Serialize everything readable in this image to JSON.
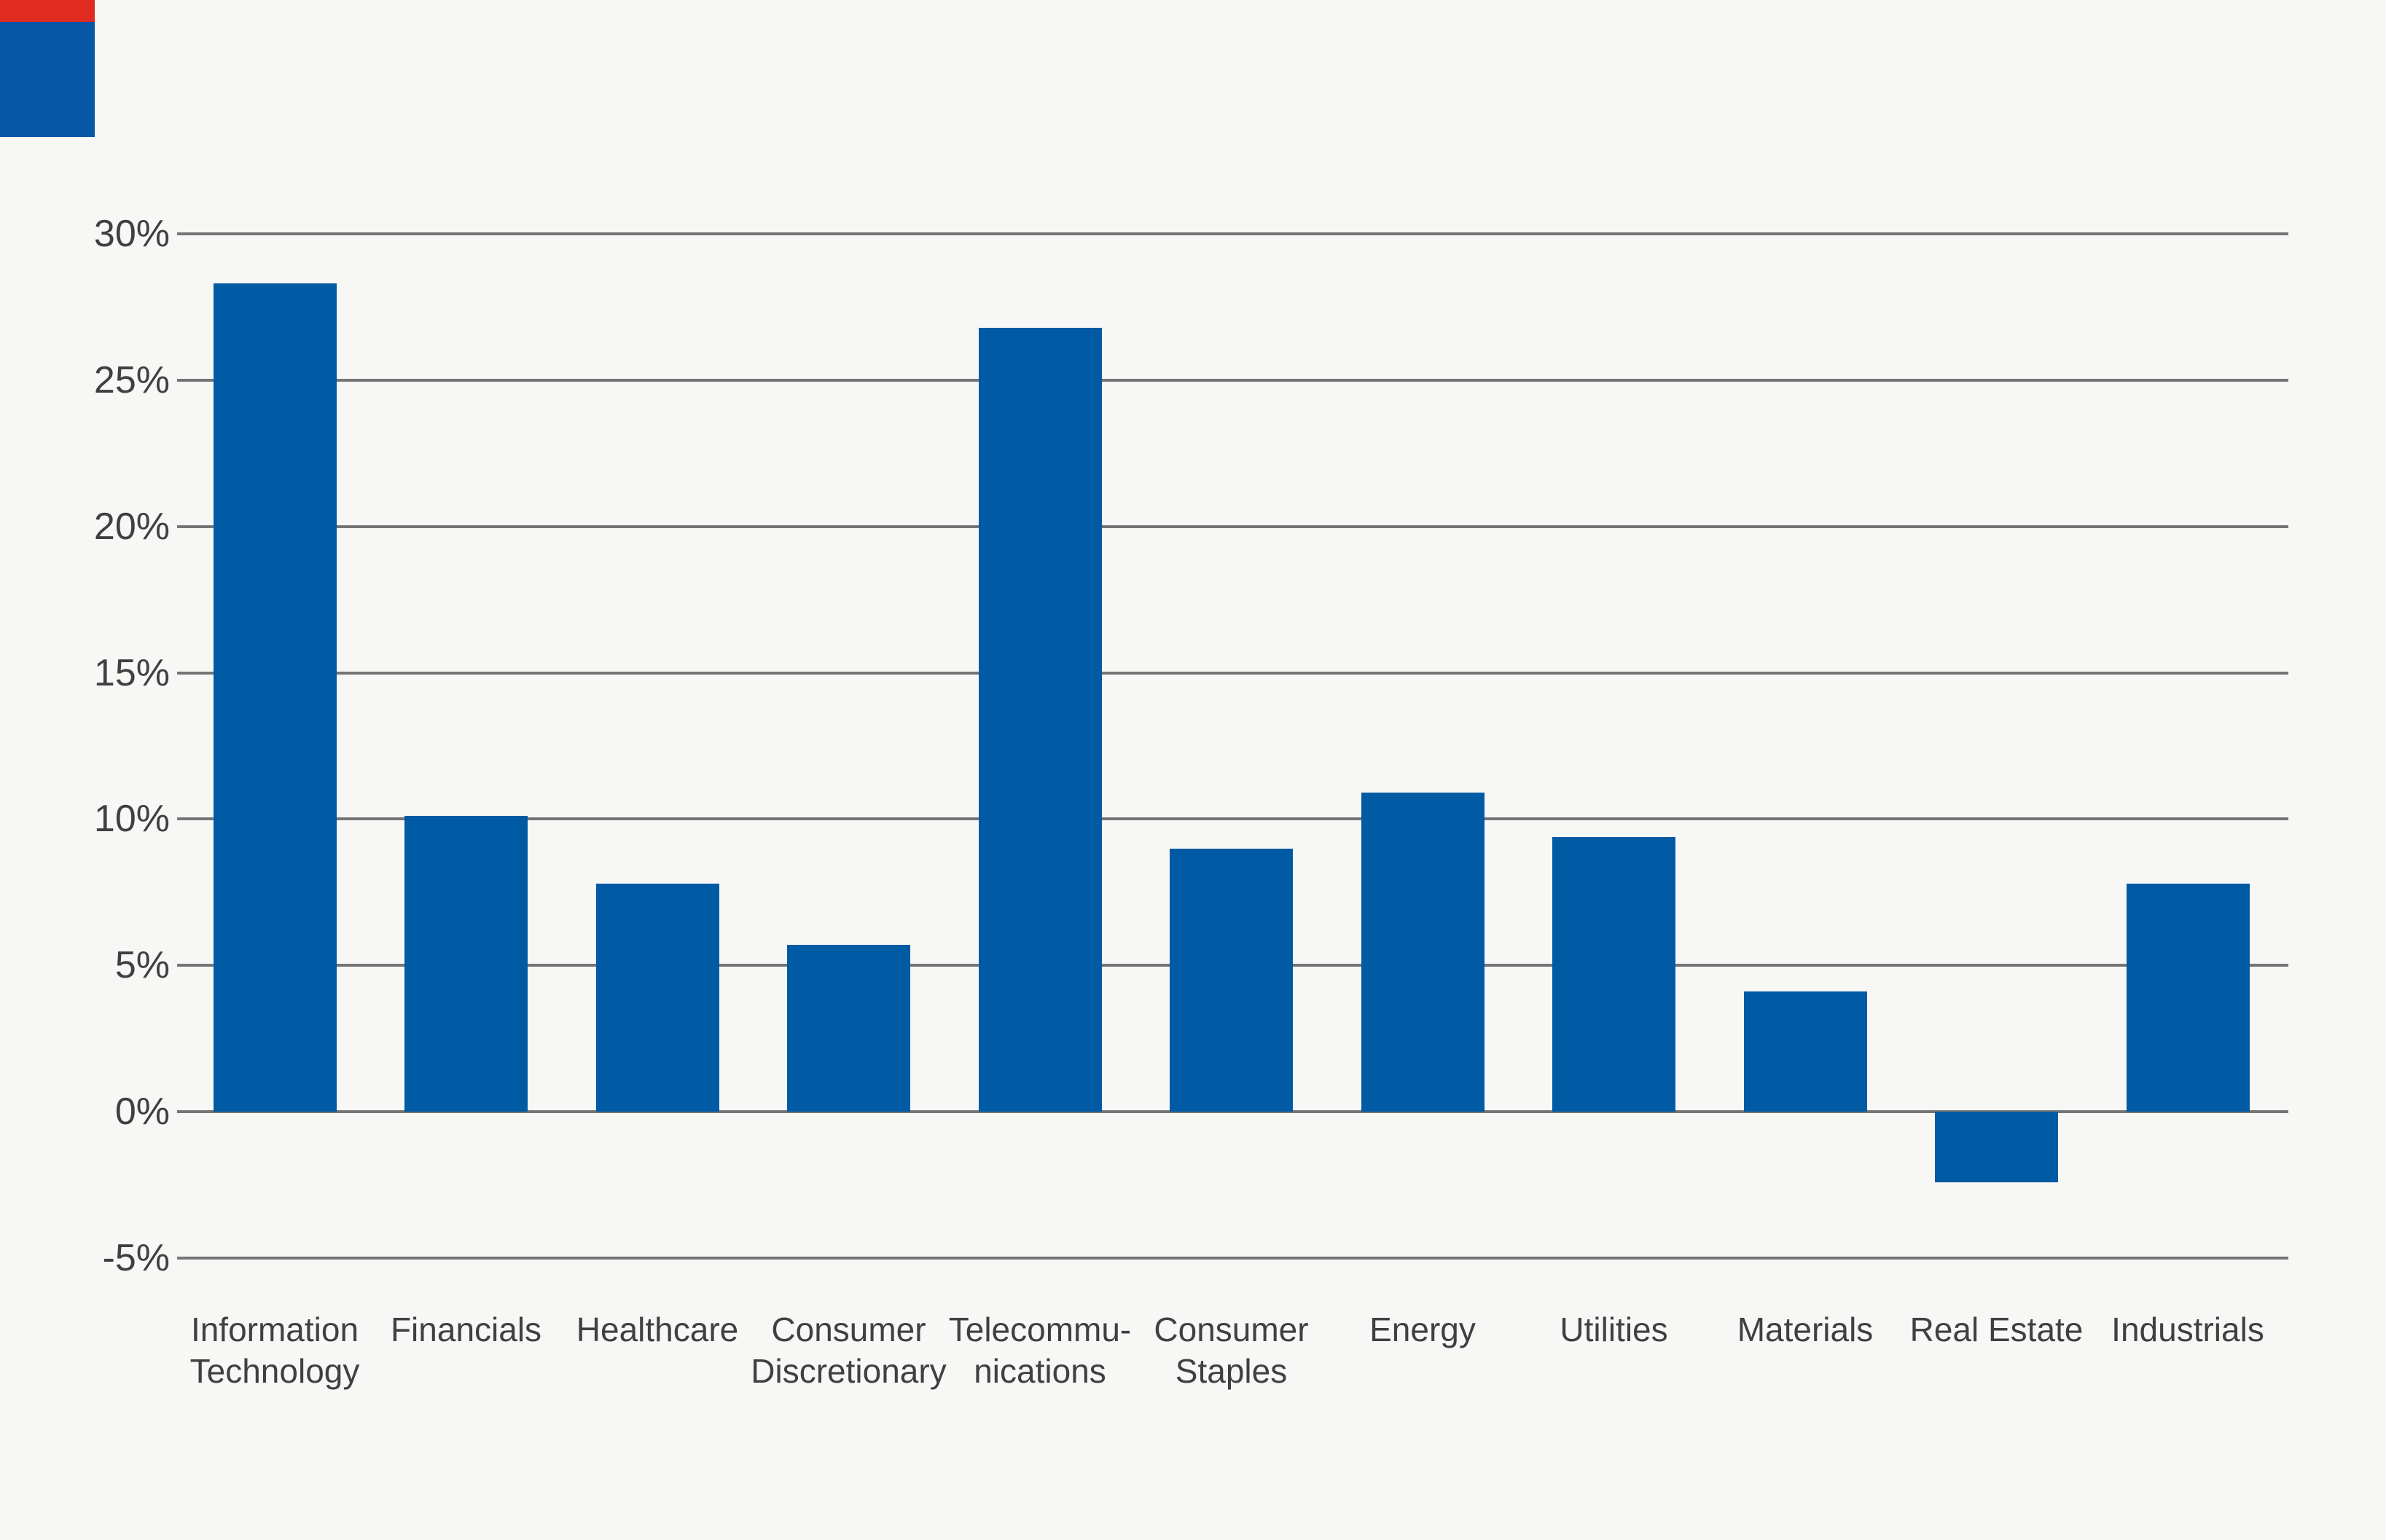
{
  "chart_data": {
    "type": "bar",
    "title": "",
    "xlabel": "",
    "ylabel": "",
    "categories": [
      "Information Technology",
      "Financials",
      "Healthcare",
      "Consumer Discretionary",
      "Telecommunications",
      "Consumer Staples",
      "Energy",
      "Utilities",
      "Materials",
      "Real Estate",
      "Industrials"
    ],
    "category_label_lines": [
      [
        "Information",
        "Technology"
      ],
      [
        "Financials"
      ],
      [
        "Healthcare"
      ],
      [
        "Consumer",
        "Discretionary"
      ],
      [
        "Telecommu-",
        "nications"
      ],
      [
        "Consumer",
        "Staples"
      ],
      [
        "Energy"
      ],
      [
        "Utilities"
      ],
      [
        "Materials"
      ],
      [
        "Real Estate"
      ],
      [
        "Industrials"
      ]
    ],
    "values": [
      28.3,
      10.1,
      7.8,
      5.7,
      26.8,
      9.0,
      10.9,
      9.4,
      4.1,
      -2.4,
      7.8
    ],
    "unit": "%",
    "ylim": [
      -5,
      30
    ],
    "ytick_step": 5,
    "ytick_values": [
      30,
      25,
      20,
      15,
      10,
      5,
      0,
      -5
    ],
    "ytick_labels": [
      "30%",
      "25%",
      "20%",
      "15%",
      "10%",
      "5%",
      "0%",
      "-5%"
    ],
    "grid": true,
    "legend": false
  },
  "colors": {
    "background": "#F7F7F5",
    "bar": "#005AA4",
    "gridline": "#757575",
    "label_text": "#404040",
    "logo_fragment_red": "#E02B20",
    "logo_fragment_blue": "#0856A6"
  }
}
